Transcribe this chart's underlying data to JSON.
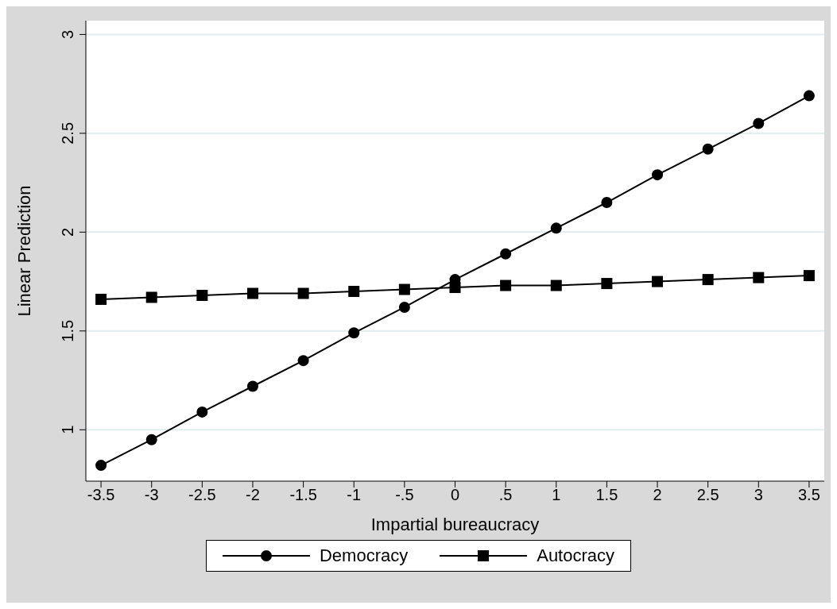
{
  "chart_data": {
    "type": "line",
    "xlabel": "Impartial bureaucracy",
    "ylabel": "Linear Prediction",
    "x": [
      -3.5,
      -3,
      -2.5,
      -2,
      -1.5,
      -1,
      -0.5,
      0,
      0.5,
      1,
      1.5,
      2,
      2.5,
      3,
      3.5
    ],
    "series": [
      {
        "name": "Democracy",
        "color": "#000000",
        "marker": "circle",
        "values": [
          0.82,
          0.95,
          1.09,
          1.22,
          1.35,
          1.49,
          1.62,
          1.76,
          1.89,
          2.02,
          2.15,
          2.29,
          2.42,
          2.55,
          2.69
        ]
      },
      {
        "name": "Autocracy",
        "color": "#000000",
        "marker": "square",
        "values": [
          1.66,
          1.67,
          1.68,
          1.69,
          1.69,
          1.7,
          1.71,
          1.72,
          1.73,
          1.73,
          1.74,
          1.75,
          1.76,
          1.77,
          1.78
        ]
      }
    ],
    "xlim": [
      -3.65,
      3.65
    ],
    "xticks": [
      -3.5,
      -3,
      -2.5,
      -2,
      -1.5,
      -1,
      {
        "value": -0.5,
        "label": "-.5"
      },
      0,
      {
        "value": 0.5,
        "label": ".5"
      },
      1,
      1.5,
      2,
      2.5,
      3,
      3.5
    ],
    "ylim": [
      0.74,
      3.07
    ],
    "yticks": [
      1,
      1.5,
      2,
      2.5,
      3
    ],
    "grid": "y",
    "legend": "bottom",
    "line_style": "solid"
  }
}
